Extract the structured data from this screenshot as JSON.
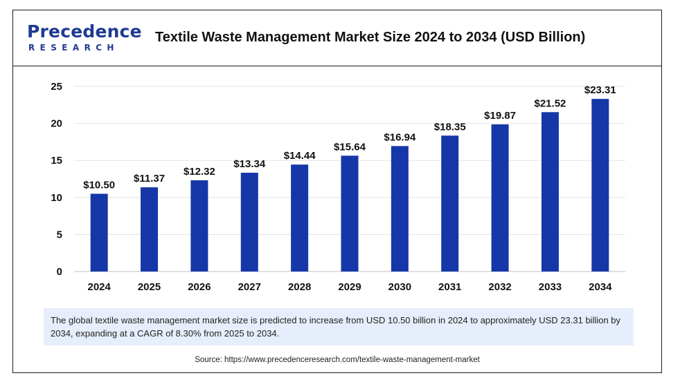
{
  "header": {
    "logo_main": "Precedence",
    "logo_sub": "RESEARCH",
    "title": "Textile Waste Management Market Size 2024 to 2034 (USD Billion)"
  },
  "colors": {
    "bar": "#1637a8",
    "summary_bg": "#e6eefb",
    "brand": "#1f3a93"
  },
  "chart_data": {
    "type": "bar",
    "title": "Textile Waste Management Market Size 2024 to 2034 (USD Billion)",
    "categories": [
      "2024",
      "2025",
      "2026",
      "2027",
      "2028",
      "2029",
      "2030",
      "2031",
      "2032",
      "2033",
      "2034"
    ],
    "values": [
      10.5,
      11.37,
      12.32,
      13.34,
      14.44,
      15.64,
      16.94,
      18.35,
      19.87,
      21.52,
      23.31
    ],
    "data_labels": [
      "$10.50",
      "$11.37",
      "$12.32",
      "$13.34",
      "$14.44",
      "$15.64",
      "$16.94",
      "$18.35",
      "$19.87",
      "$21.52",
      "$23.31"
    ],
    "yticks": [
      0,
      5,
      10,
      15,
      20,
      25
    ],
    "ylim": [
      0,
      25
    ],
    "xlabel": "",
    "ylabel": "",
    "grid": true
  },
  "summary": "The global textile waste management market size is predicted to increase from USD 10.50 billion in 2024 to approximately USD 23.31 billion by 2034, expanding at a CAGR of 8.30% from 2025 to 2034.",
  "source": "Source: https://www.precedenceresearch.com/textile-waste-management-market"
}
